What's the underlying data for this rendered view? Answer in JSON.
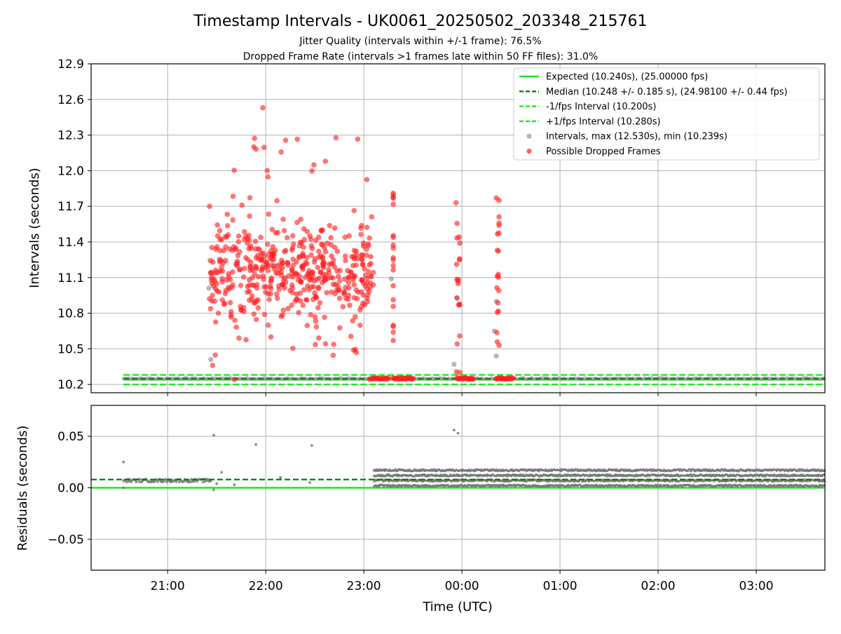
{
  "figure": {
    "title": "Timestamp Intervals - UK0061_20250502_203348_215761",
    "subtitle_1": "Jitter Quality (intervals within +/-1 frame): 76.5%",
    "subtitle_2": "Dropped Frame Rate (intervals >1 frames late within 50 FF files): 31.0%"
  },
  "colors": {
    "expected": "#22e522",
    "median": "#117711",
    "interval_band": "#22e522",
    "intervals": "#999999",
    "dropped": "#ff2020",
    "residuals": "#777777",
    "grid": "#b0b0b0"
  },
  "chart_data": [
    {
      "type": "scatter",
      "name": "intervals",
      "xlabel": "",
      "ylabel": "Intervals (seconds)",
      "xlim": [
        20.22,
        27.7
      ],
      "ylim": [
        10.13,
        12.9
      ],
      "x_ticks": [
        21,
        22,
        23,
        24,
        25,
        26,
        27
      ],
      "x_tick_labels": [
        "21:00",
        "22:00",
        "23:00",
        "00:00",
        "01:00",
        "02:00",
        "03:00"
      ],
      "y_ticks": [
        10.2,
        10.5,
        10.8,
        11.1,
        11.4,
        11.7,
        12.0,
        12.3,
        12.6,
        12.9
      ],
      "y_tick_labels": [
        "10.2",
        "10.5",
        "10.8",
        "11.1",
        "11.4",
        "11.7",
        "12.0",
        "12.3",
        "12.6",
        "12.9"
      ],
      "grid": true,
      "legend_position": "top-right",
      "legend": [
        "Expected (10.240s), (25.00000 fps)",
        "Median (10.248 +/- 0.185 s), (24.98100 +/- 0.44 fps)",
        "-1/fps Interval (10.200s)",
        "+1/fps Interval (10.280s)",
        "Intervals, max (12.530s), min (10.239s)",
        "Possible Dropped Frames"
      ],
      "reference_lines": {
        "expected": 10.24,
        "median": 10.248,
        "minus_1fps": 10.2,
        "plus_1fps": 10.28
      },
      "x_range": [
        20.55,
        27.7
      ],
      "dropped_clusters": [
        {
          "x_start": 21.42,
          "x_end": 23.1,
          "y_min": 10.24,
          "y_max": 12.3,
          "peak_x": 21.97,
          "peak_y": 12.53
        },
        {
          "x_start": 23.3,
          "x_end": 23.3,
          "y_min": 10.57,
          "y_max": 11.81
        },
        {
          "x_start": 23.94,
          "x_end": 23.98,
          "y_min": 10.3,
          "y_max": 11.73
        },
        {
          "x_start": 24.35,
          "x_end": 24.38,
          "y_min": 10.53,
          "y_max": 11.77
        }
      ],
      "dropped_bursts_at_baseline": [
        [
          23.08,
          23.25
        ],
        [
          23.3,
          23.5
        ],
        [
          23.95,
          24.12
        ],
        [
          24.35,
          24.52
        ]
      ],
      "grey_outliers": [
        [
          21.42,
          11.01
        ],
        [
          21.44,
          10.41
        ],
        [
          23.28,
          11.09
        ],
        [
          23.92,
          10.37
        ],
        [
          23.95,
          10.93
        ],
        [
          24.33,
          10.65
        ],
        [
          24.35,
          10.44
        ],
        [
          24.35,
          10.9
        ]
      ]
    },
    {
      "type": "scatter",
      "name": "residuals",
      "xlabel": "Time (UTC)",
      "ylabel": "Residuals (seconds)",
      "xlim": [
        20.22,
        27.7
      ],
      "ylim": [
        -0.08,
        0.08
      ],
      "x_ticks": [
        21,
        22,
        23,
        24,
        25,
        26,
        27
      ],
      "x_tick_labels": [
        "21:00",
        "22:00",
        "23:00",
        "00:00",
        "01:00",
        "02:00",
        "03:00"
      ],
      "y_ticks": [
        -0.05,
        0.0,
        0.05
      ],
      "y_tick_labels": [
        "−0.05",
        "0.00",
        "0.05"
      ],
      "grid": true,
      "reference_lines": {
        "expected": 0.0,
        "median": 0.008
      },
      "early_band": {
        "x_start": 20.55,
        "x_end": 21.45,
        "y": 0.007
      },
      "dense_band": {
        "x_start": 23.1,
        "x_end": 27.7,
        "y_low": 0.002,
        "y_high": 0.017
      },
      "outliers": [
        [
          20.55,
          0.025
        ],
        [
          20.55,
          0.0
        ],
        [
          21.47,
          0.051
        ],
        [
          21.47,
          -0.002
        ],
        [
          21.5,
          0.004
        ],
        [
          21.55,
          0.015
        ],
        [
          21.68,
          0.003
        ],
        [
          21.9,
          0.042
        ],
        [
          22.15,
          0.01
        ],
        [
          22.45,
          0.005
        ],
        [
          22.47,
          0.041
        ],
        [
          23.92,
          0.056
        ],
        [
          23.96,
          0.053
        ]
      ]
    }
  ]
}
